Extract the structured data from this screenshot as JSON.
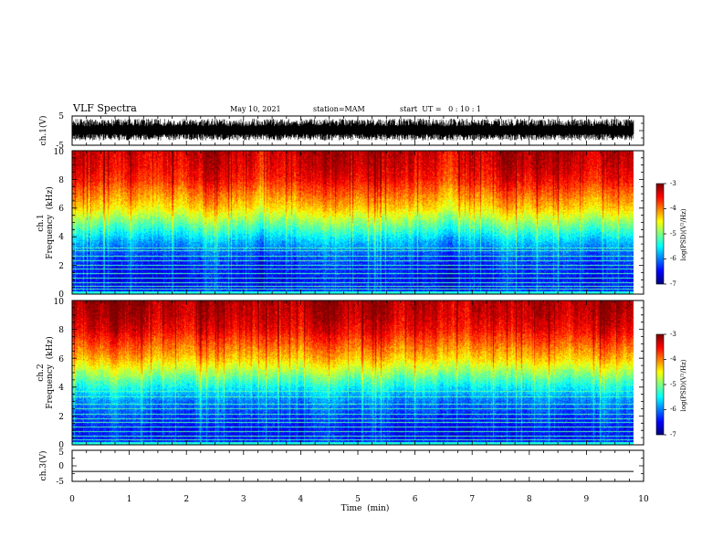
{
  "header": {
    "title": "VLF Spectra",
    "date": "May 10, 2021",
    "station": "station=MAM",
    "start": "start  UT =   0 : 10 : 1"
  },
  "chart_data": [
    {
      "type": "line",
      "panel": "ch1-waveform",
      "ylabel": "ch.1(V)",
      "ylim": [
        -5,
        5
      ],
      "yticks": [
        "5",
        "-5"
      ],
      "xlim": [
        0,
        10
      ],
      "signal": "dense broadband noise band between about -3 and +4 V",
      "color": "#000000"
    },
    {
      "type": "heatmap",
      "panel": "ch1-spectrogram",
      "ylabel_line1": "ch.1",
      "ylabel_line2": "Frequency  (kHz)",
      "ylim": [
        0,
        10
      ],
      "yticks": [
        "0",
        "2",
        "4",
        "6",
        "8",
        "10"
      ],
      "xlim": [
        0,
        9.83
      ],
      "colorbar": {
        "label": "log(PSD)(V²/Hz)",
        "range": [
          -7,
          -3
        ],
        "ticks": [
          "-3",
          "-4",
          "-5",
          "-6",
          "-7"
        ],
        "colormap": "jet"
      },
      "profile": {
        "freq_kHz": [
          0,
          1,
          2,
          3,
          3.8,
          4.5,
          5,
          5.5,
          6,
          7,
          8,
          9,
          10
        ],
        "log_psd": [
          -6.4,
          -6.5,
          -6.4,
          -6.1,
          -5.7,
          -5.3,
          -5.0,
          -4.7,
          -4.4,
          -4.0,
          -3.6,
          -3.4,
          -3.3
        ]
      },
      "line_freqs_kHz": [
        0.3,
        0.5,
        0.8,
        1.1,
        1.4,
        1.7,
        2.0,
        2.3,
        2.6,
        3.0,
        3.2
      ]
    },
    {
      "type": "heatmap",
      "panel": "ch2-spectrogram",
      "ylabel_line1": "ch.2",
      "ylabel_line2": "Frequency  (kHz)",
      "ylim": [
        0,
        10
      ],
      "yticks": [
        "0",
        "2",
        "4",
        "6",
        "8",
        "10"
      ],
      "xlim": [
        0,
        9.83
      ],
      "colorbar": {
        "label": "log(PSD)(V²/Hz)",
        "range": [
          -7,
          -3
        ],
        "ticks": [
          "-3",
          "-4",
          "-5",
          "-6",
          "-7"
        ],
        "colormap": "jet"
      },
      "profile": {
        "freq_kHz": [
          0,
          1,
          2,
          3,
          3.8,
          4.5,
          5,
          5.5,
          6,
          7,
          8,
          9,
          10
        ],
        "log_psd": [
          -6.4,
          -6.5,
          -6.3,
          -6.0,
          -5.6,
          -5.2,
          -4.9,
          -4.6,
          -4.3,
          -3.9,
          -3.5,
          -3.3,
          -3.2
        ]
      },
      "line_freqs_kHz": [
        0.3,
        0.6,
        0.9,
        1.2,
        1.5,
        1.8,
        2.1,
        2.5,
        2.8,
        3.3,
        3.7
      ]
    },
    {
      "type": "line",
      "panel": "ch3-waveform",
      "ylabel": "ch.3(V)",
      "ylim": [
        -5,
        5
      ],
      "yticks": [
        "5",
        "0",
        "-5"
      ],
      "xlim": [
        0,
        10
      ],
      "x": [
        0,
        9.83
      ],
      "y": [
        -1.8,
        -1.8
      ],
      "color": "#000000"
    }
  ],
  "xaxis": {
    "label": "Time  (min)",
    "range": [
      0,
      10
    ],
    "ticks": [
      "0",
      "1",
      "2",
      "3",
      "4",
      "5",
      "6",
      "7",
      "8",
      "9",
      "10"
    ]
  }
}
